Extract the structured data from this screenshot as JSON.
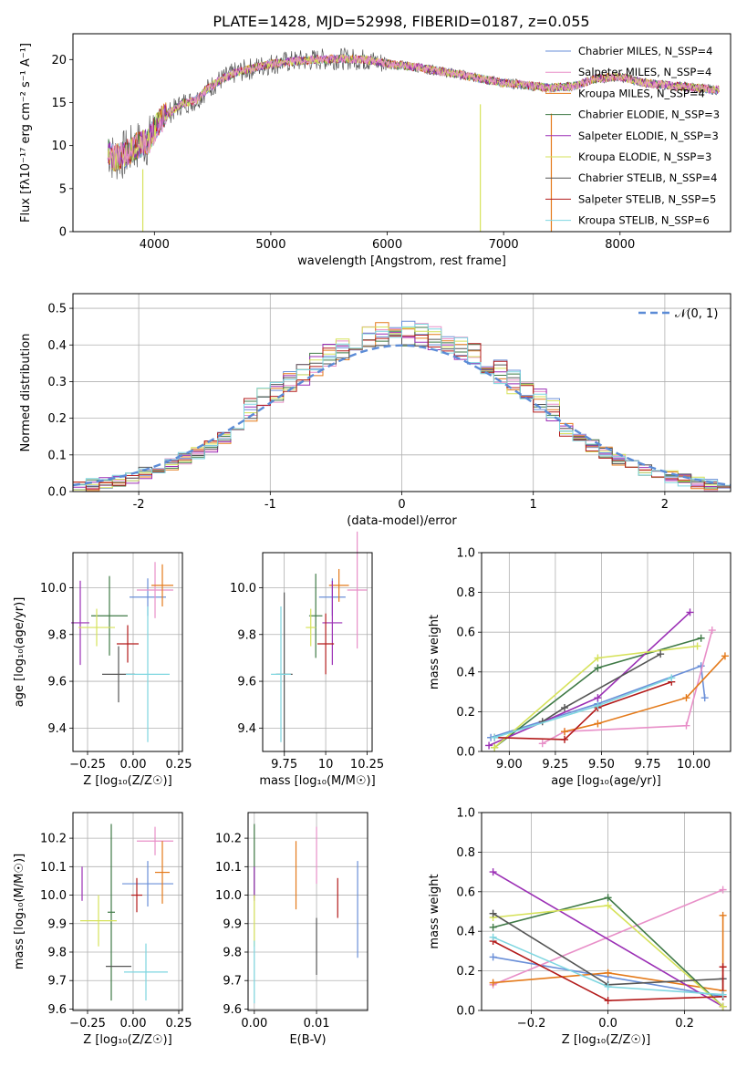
{
  "colors": [
    "#6a8fd8",
    "#e88fc8",
    "#e47a1a",
    "#3f7a46",
    "#9b2fb5",
    "#d6e25a",
    "#555555",
    "#b31b1b",
    "#7ed6e0"
  ],
  "chart_data": [
    {
      "id": "spectrum",
      "type": "line",
      "title": "PLATE=1428, MJD=52998, FIBERID=0187, z=0.055",
      "xlabel": "wavelength [Angstrom, rest frame]",
      "ylabel": "Flux [fλ10⁻¹⁷ erg cm⁻² s⁻¹ A⁻¹]",
      "xlim": [
        3300,
        8950
      ],
      "ylim": [
        0,
        23
      ],
      "xticks": [
        4000,
        5000,
        6000,
        7000,
        8000
      ],
      "yticks": [
        0,
        5,
        10,
        15,
        20
      ],
      "legend": [
        "Chabrier MILES, N_SSP=4",
        "Salpeter MILES, N_SSP=4",
        "Kroupa MILES, N_SSP=4",
        "Chabrier ELODIE, N_SSP=3",
        "Salpeter ELODIE, N_SSP=3",
        "Kroupa ELODIE, N_SSP=3",
        "Chabrier STELIB, N_SSP=4",
        "Salpeter STELIB, N_SSP=5",
        "Kroupa STELIB, N_SSP=6"
      ],
      "legend_position": "right",
      "continuum": {
        "x": [
          3600,
          3650,
          3750,
          3850,
          3950,
          4050,
          4150,
          4250,
          4350,
          4450,
          4550,
          4700,
          4850,
          5000,
          5200,
          5400,
          5600,
          5800,
          6000,
          6200,
          6400,
          6600,
          6800,
          7000,
          7200,
          7400,
          7600,
          7800,
          8000,
          8200,
          8400,
          8600,
          8800
        ],
        "y": [
          9.5,
          8.5,
          9.0,
          10.0,
          10.5,
          13.0,
          14.0,
          15.0,
          15.2,
          16.5,
          17.5,
          18.5,
          19.0,
          19.5,
          19.8,
          20.0,
          20.1,
          20.0,
          19.5,
          19.2,
          18.8,
          18.3,
          17.8,
          17.3,
          17.0,
          16.7,
          16.9,
          17.8,
          18.0,
          17.3,
          17.0,
          16.8,
          16.5
        ]
      }
    },
    {
      "id": "residuals",
      "type": "bar",
      "xlabel": "(data-model)/error",
      "ylabel": "Normed distribution",
      "xlim": [
        -2.5,
        2.5
      ],
      "ylim": [
        0,
        0.54
      ],
      "xticks": [
        -2,
        -1,
        0,
        1,
        2
      ],
      "yticks": [
        0.0,
        0.1,
        0.2,
        0.3,
        0.4,
        0.5
      ],
      "legend": [
        "𝒩(0, 1)"
      ],
      "legend_position": "top-right",
      "gaussian": {
        "mean": 0,
        "sigma": 1
      },
      "bin_width": 0.1,
      "grid": true
    },
    {
      "id": "age-vs-Z",
      "type": "scatter",
      "xlabel": "Z [log₁₀(Z/Z☉)]",
      "ylabel": "age  [log₁₀(age/yr)]",
      "xlim": [
        -0.33,
        0.27
      ],
      "ylim": [
        9.3,
        10.15
      ],
      "xticks": [
        -0.25,
        0.0,
        0.25
      ],
      "yticks": [
        9.4,
        9.6,
        9.8,
        10.0
      ],
      "xticklabels": [
        "−0.25",
        "0.00",
        "0.25"
      ],
      "grid": true,
      "points": [
        {
          "x": 0.08,
          "xerr": 0.1,
          "y": 9.96,
          "yerr": 0.08,
          "c": 0
        },
        {
          "x": 0.12,
          "xerr": 0.1,
          "y": 9.99,
          "yerr": 0.12,
          "c": 1
        },
        {
          "x": 0.16,
          "xerr": 0.06,
          "y": 10.01,
          "yerr": 0.09,
          "c": 2
        },
        {
          "x": -0.13,
          "xerr": 0.1,
          "y": 9.88,
          "yerr": 0.17,
          "c": 3
        },
        {
          "x": -0.29,
          "xerr": 0.05,
          "y": 9.85,
          "yerr": 0.18,
          "c": 4
        },
        {
          "x": -0.2,
          "xerr": 0.1,
          "y": 9.83,
          "yerr": 0.08,
          "c": 5
        },
        {
          "x": -0.08,
          "xerr": 0.09,
          "y": 9.63,
          "yerr": 0.12,
          "c": 6
        },
        {
          "x": -0.03,
          "xerr": 0.06,
          "y": 9.76,
          "yerr": 0.08,
          "c": 7
        },
        {
          "x": 0.08,
          "xerr": 0.12,
          "y": 9.63,
          "yerr": 0.29,
          "c": 8
        }
      ]
    },
    {
      "id": "age-vs-mass",
      "type": "scatter",
      "xlabel": "mass [log₁₀(M/M☉)]",
      "ylabel": "",
      "xlim": [
        9.62,
        10.28
      ],
      "ylim": [
        9.3,
        10.15
      ],
      "xticks": [
        9.75,
        10.0,
        10.25
      ],
      "yticks": [
        9.4,
        9.6,
        9.8,
        10.0
      ],
      "grid": true,
      "points": [
        {
          "x": 10.04,
          "xerr": 0.08,
          "y": 9.96,
          "yerr": 0.08,
          "c": 0
        },
        {
          "x": 10.19,
          "xerr": 0.06,
          "y": 9.99,
          "yerr": 0.25,
          "c": 1
        },
        {
          "x": 10.08,
          "xerr": 0.06,
          "y": 10.01,
          "yerr": 0.07,
          "c": 2
        },
        {
          "x": 9.94,
          "xerr": 0.04,
          "y": 9.88,
          "yerr": 0.18,
          "c": 3
        },
        {
          "x": 10.04,
          "xerr": 0.06,
          "y": 9.85,
          "yerr": 0.18,
          "c": 4
        },
        {
          "x": 9.91,
          "xerr": 0.03,
          "y": 9.83,
          "yerr": 0.08,
          "c": 5
        },
        {
          "x": 9.75,
          "xerr": 0.05,
          "y": 9.63,
          "yerr": 0.35,
          "c": 6
        },
        {
          "x": 10.0,
          "xerr": 0.05,
          "y": 9.76,
          "yerr": 0.13,
          "c": 7
        },
        {
          "x": 9.73,
          "xerr": 0.06,
          "y": 9.63,
          "yerr": 0.29,
          "c": 8
        }
      ]
    },
    {
      "id": "mass-weight-vs-age",
      "type": "line",
      "xlabel": "age  [log₁₀(age/yr)]",
      "ylabel": "mass weight",
      "xlim": [
        8.85,
        10.2
      ],
      "ylim": [
        0.0,
        1.0
      ],
      "xticks": [
        9.0,
        9.25,
        9.5,
        9.75,
        10.0
      ],
      "yticks": [
        0.0,
        0.2,
        0.4,
        0.6,
        0.8,
        1.0
      ],
      "xticklabels": [
        "9.00",
        "9.25",
        "9.50",
        "9.75",
        "10.00"
      ],
      "grid": true,
      "series": [
        {
          "c": 0,
          "x": [
            8.9,
            9.48,
            10.04,
            10.06
          ],
          "y": [
            0.07,
            0.24,
            0.43,
            0.27
          ]
        },
        {
          "c": 1,
          "x": [
            9.18,
            9.3,
            9.96,
            10.1
          ],
          "y": [
            0.04,
            0.1,
            0.13,
            0.61
          ]
        },
        {
          "c": 2,
          "x": [
            9.3,
            9.48,
            9.96,
            10.17
          ],
          "y": [
            0.1,
            0.14,
            0.27,
            0.48
          ]
        },
        {
          "c": 3,
          "x": [
            8.92,
            9.48,
            10.04
          ],
          "y": [
            0.02,
            0.42,
            0.57
          ]
        },
        {
          "c": 4,
          "x": [
            8.89,
            9.48,
            9.98
          ],
          "y": [
            0.03,
            0.27,
            0.7
          ]
        },
        {
          "c": 5,
          "x": [
            8.92,
            9.48,
            10.02
          ],
          "y": [
            0.02,
            0.47,
            0.53
          ]
        },
        {
          "c": 6,
          "x": [
            9.18,
            9.3,
            9.82
          ],
          "y": [
            0.15,
            0.22,
            0.49
          ]
        },
        {
          "c": 7,
          "x": [
            8.92,
            9.3,
            9.48,
            9.88
          ],
          "y": [
            0.07,
            0.06,
            0.22,
            0.35
          ]
        },
        {
          "c": 8,
          "x": [
            8.92,
            9.48,
            9.88
          ],
          "y": [
            0.07,
            0.23,
            0.37
          ]
        }
      ]
    },
    {
      "id": "mass-vs-Z",
      "type": "scatter",
      "xlabel": "Z [log₁₀(Z/Z☉)]",
      "ylabel": "mass [log₁₀(M/M☉)]",
      "xlim": [
        -0.33,
        0.27
      ],
      "ylim": [
        9.595,
        10.29
      ],
      "xticks": [
        -0.25,
        0.0,
        0.25
      ],
      "yticks": [
        9.6,
        9.7,
        9.8,
        9.9,
        10.0,
        10.1,
        10.2
      ],
      "xticklabels": [
        "−0.25",
        "0.00",
        "0.25"
      ],
      "grid": true,
      "points": [
        {
          "x": 0.08,
          "xerr": 0.14,
          "y": 10.04,
          "yerr": 0.08,
          "c": 0
        },
        {
          "x": 0.12,
          "xerr": 0.1,
          "y": 10.19,
          "yerr": 0.05,
          "c": 1
        },
        {
          "x": 0.16,
          "xerr": 0.04,
          "y": 10.08,
          "yerr": 0.11,
          "c": 2
        },
        {
          "x": -0.12,
          "xerr": 0.02,
          "y": 9.94,
          "yerr": 0.31,
          "c": 3
        },
        {
          "x": -0.28,
          "xerr": 0.0,
          "y": 10.04,
          "yerr": 0.06,
          "c": 4
        },
        {
          "x": -0.19,
          "xerr": 0.1,
          "y": 9.91,
          "yerr": 0.09,
          "c": 5
        },
        {
          "x": -0.08,
          "xerr": 0.07,
          "y": 9.75,
          "yerr": 0.0,
          "c": 6
        },
        {
          "x": 0.02,
          "xerr": 0.03,
          "y": 10.0,
          "yerr": 0.06,
          "c": 7
        },
        {
          "x": 0.07,
          "xerr": 0.12,
          "y": 9.73,
          "yerr": 0.1,
          "c": 8
        }
      ]
    },
    {
      "id": "mass-vs-EBV",
      "type": "scatter",
      "xlabel": "E(B-V)",
      "ylabel": "",
      "xlim": [
        -0.001,
        0.0182
      ],
      "ylim": [
        9.595,
        10.29
      ],
      "xticks": [
        0.0,
        0.01
      ],
      "yticks": [
        9.6,
        9.7,
        9.8,
        9.9,
        10.0,
        10.1,
        10.2
      ],
      "xticklabels": [
        "0.00",
        "0.01"
      ],
      "grid": true,
      "points": [
        {
          "x": 0.0166,
          "xerr": 0.0,
          "y": 9.95,
          "yerr": 0.17,
          "c": 0
        },
        {
          "x": 0.01,
          "xerr": 0.0,
          "y": 10.14,
          "yerr": 0.1,
          "c": 1
        },
        {
          "x": 0.0067,
          "xerr": 0.0,
          "y": 10.07,
          "yerr": 0.12,
          "c": 2
        },
        {
          "x": 0.0,
          "xerr": 0.0,
          "y": 10.12,
          "yerr": 0.13,
          "c": 3
        },
        {
          "x": 0.0,
          "xerr": 0.0,
          "y": 10.04,
          "yerr": 0.06,
          "c": 4
        },
        {
          "x": 0.0,
          "xerr": 0.0,
          "y": 9.91,
          "yerr": 0.09,
          "c": 5
        },
        {
          "x": 0.01,
          "xerr": 0.0,
          "y": 9.82,
          "yerr": 0.1,
          "c": 6
        },
        {
          "x": 0.0134,
          "xerr": 0.0,
          "y": 9.99,
          "yerr": 0.07,
          "c": 7
        },
        {
          "x": 0.0,
          "xerr": 0.0,
          "y": 9.73,
          "yerr": 0.11,
          "c": 8
        }
      ]
    },
    {
      "id": "mass-weight-vs-Z",
      "type": "line",
      "xlabel": "Z [log₁₀(Z/Z☉)]",
      "ylabel": "mass weight",
      "xlim": [
        -0.33,
        0.32
      ],
      "ylim": [
        0.0,
        1.0
      ],
      "xticks": [
        -0.2,
        0.0,
        0.2
      ],
      "yticks": [
        0.0,
        0.2,
        0.4,
        0.6,
        0.8,
        1.0
      ],
      "xticklabels": [
        "−0.2",
        "0.0",
        "0.2"
      ],
      "grid": true,
      "series": [
        {
          "c": 0,
          "x": [
            -0.3,
            0.0,
            0.3,
            0.3
          ],
          "y": [
            0.27,
            0.17,
            0.07,
            0.16
          ]
        },
        {
          "c": 1,
          "x": [
            -0.3,
            0.3
          ],
          "y": [
            0.13,
            0.61
          ]
        },
        {
          "c": 2,
          "x": [
            -0.3,
            0.0,
            0.3,
            0.3
          ],
          "y": [
            0.14,
            0.19,
            0.1,
            0.48
          ]
        },
        {
          "c": 3,
          "x": [
            -0.3,
            0.0,
            0.3
          ],
          "y": [
            0.42,
            0.57,
            0.02
          ]
        },
        {
          "c": 4,
          "x": [
            -0.3,
            0.3
          ],
          "y": [
            0.7,
            0.02
          ]
        },
        {
          "c": 5,
          "x": [
            -0.3,
            0.0,
            0.3
          ],
          "y": [
            0.47,
            0.53,
            0.02
          ]
        },
        {
          "c": 6,
          "x": [
            -0.3,
            0.0,
            0.3
          ],
          "y": [
            0.49,
            0.13,
            0.16
          ]
        },
        {
          "c": 7,
          "x": [
            -0.3,
            0.0,
            0.3,
            0.3
          ],
          "y": [
            0.35,
            0.05,
            0.07,
            0.22
          ]
        },
        {
          "c": 8,
          "x": [
            -0.3,
            0.0,
            0.3
          ],
          "y": [
            0.37,
            0.12,
            0.08
          ]
        }
      ]
    }
  ]
}
